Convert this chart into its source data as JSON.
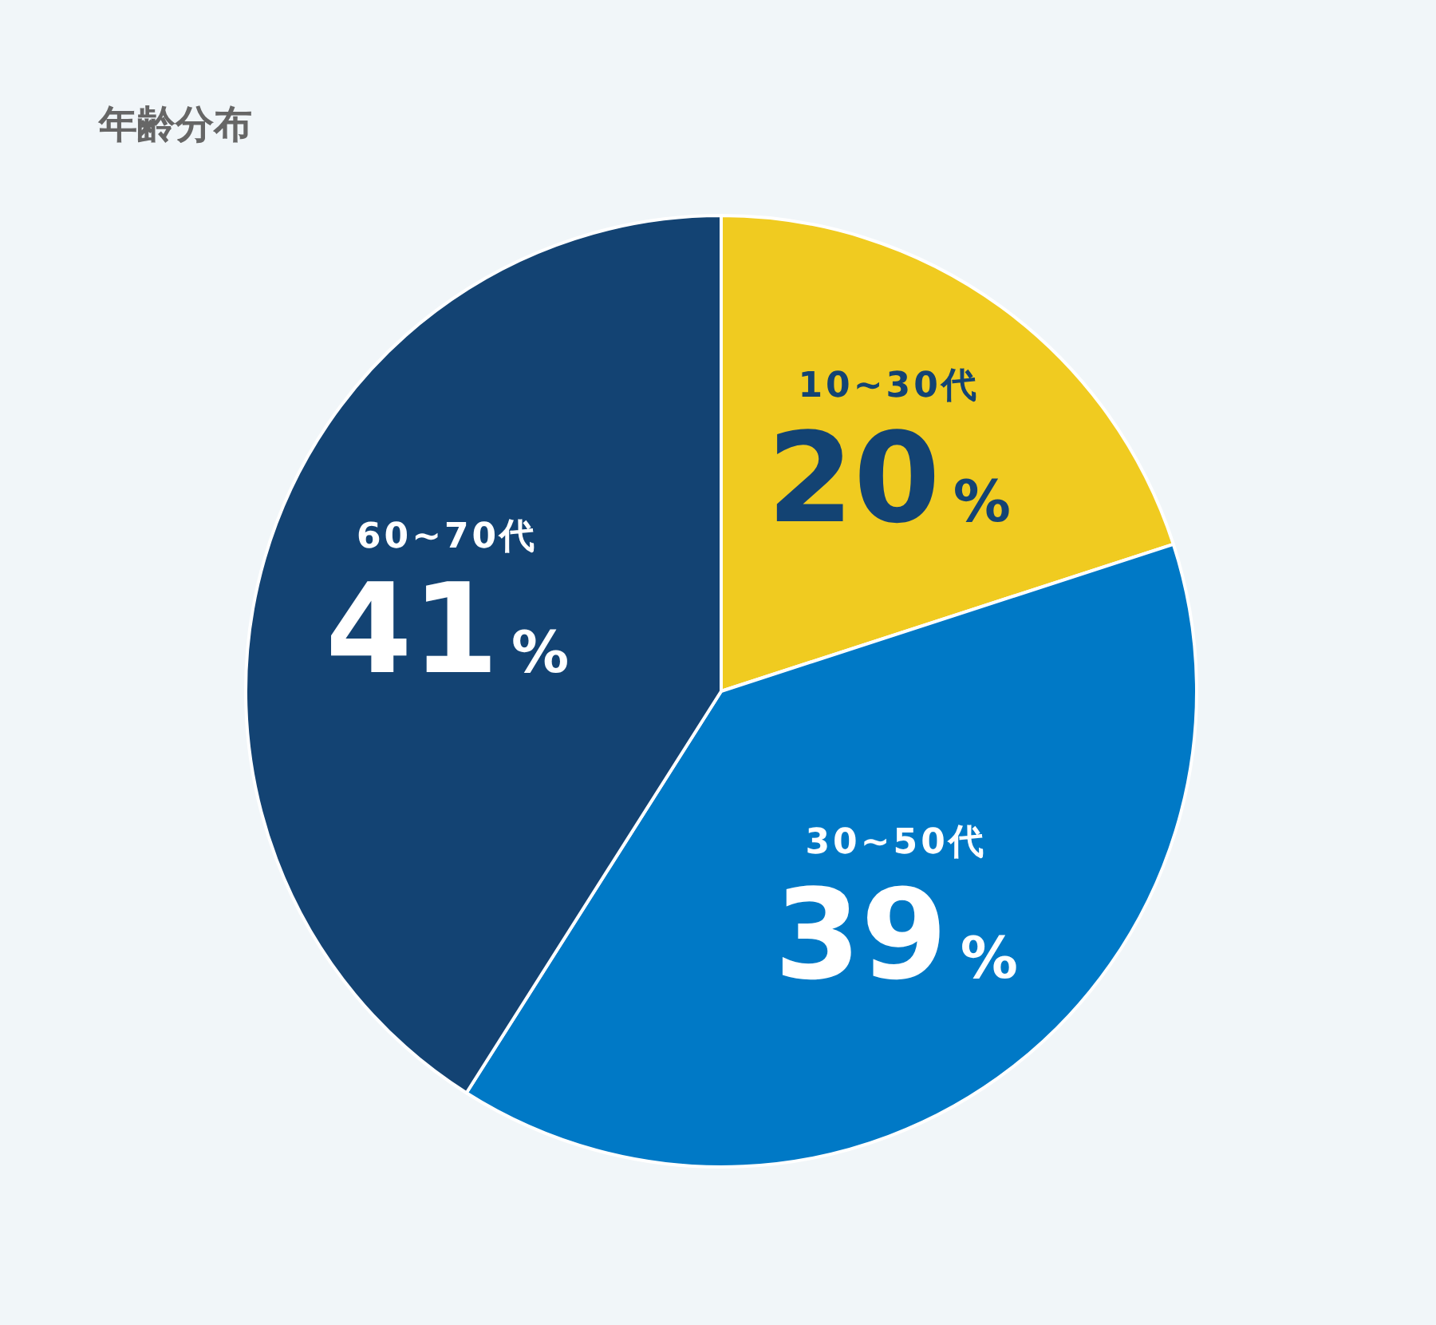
{
  "chart_data": {
    "type": "pie",
    "title": "年齢分布",
    "categories": [
      "10~30代",
      "30~50代",
      "60~70代"
    ],
    "values": [
      20,
      39,
      41
    ],
    "colors": [
      "#f0cb20",
      "#0079c6",
      "#134373"
    ],
    "value_labels": [
      "20%",
      "39%",
      "41%"
    ]
  }
}
